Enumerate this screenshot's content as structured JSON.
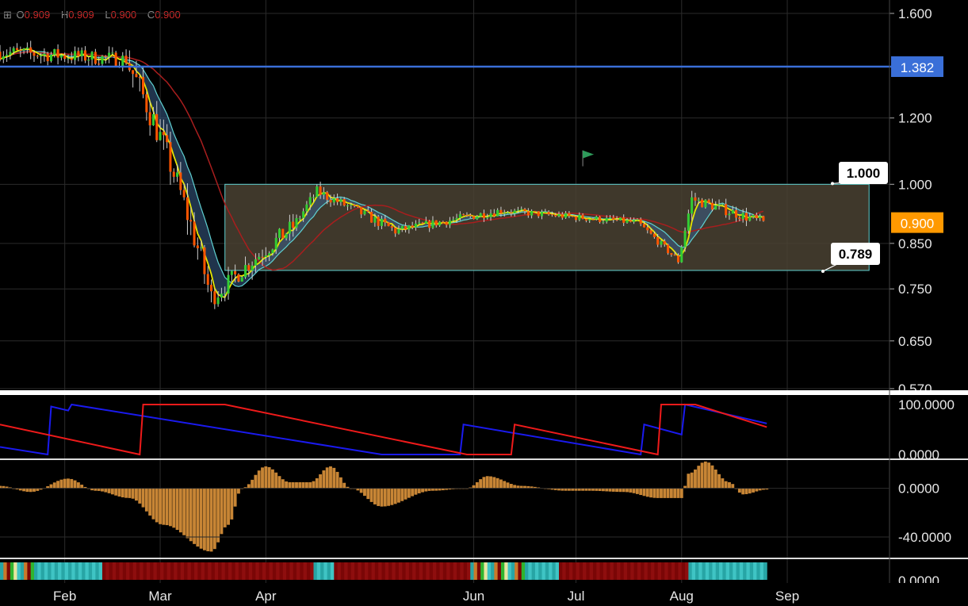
{
  "ohlc": {
    "open_label": "O",
    "open": "0.909",
    "high_label": "H",
    "high": "0.909",
    "low_label": "L",
    "low": "0.900",
    "close_label": "C",
    "close": "0.900"
  },
  "colors": {
    "up": "#33cc33",
    "down": "#ff5500",
    "hline": "#3a6fd8",
    "box_stroke": "#5fd0d0",
    "box_fill": "#4a4233",
    "ma_fast": "#e6e600",
    "ma_slow": "#a81e1e",
    "band_fill": "#3a5f8a",
    "band_line": "#5fd0d0",
    "aroon_up": "#1a1aee",
    "aroon_down": "#ee1a1a",
    "osc": "#c78535"
  },
  "chart_data": [
    {
      "type": "candlestick",
      "title": "",
      "y_axis": {
        "min": 0.57,
        "max": 1.66,
        "scale": "log",
        "ticks": [
          "1.600",
          "1.200",
          "1.000",
          "0.850",
          "0.750",
          "0.650",
          "0.570"
        ]
      },
      "x_axis": {
        "labels": [
          "Feb",
          "Mar",
          "Apr",
          "Jun",
          "Jul",
          "Aug",
          "Sep"
        ],
        "dates": [
          "2018-02-01",
          "2018-03-01",
          "2018-04-01",
          "2018-06-01",
          "2018-07-01",
          "2018-08-01",
          "2018-09-01"
        ],
        "start": "2018-01-13",
        "end": "2018-10-01"
      },
      "horizontal_line": {
        "value": 1.382,
        "label": "1.382"
      },
      "last_price": {
        "value": 0.9,
        "label": "0.900"
      },
      "range_box": {
        "top": 1.0,
        "bottom": 0.789,
        "start": "2018-03-20",
        "end": "2018-09-25",
        "top_label": "1.000",
        "bottom_label": "0.789"
      },
      "flag_marker": {
        "date": "2018-07-03",
        "value": 1.06
      },
      "phases": [
        {
          "start": "2018-01-13",
          "end": "2018-02-20",
          "from": 1.44,
          "to": 1.41,
          "vol": 0.02
        },
        {
          "start": "2018-02-20",
          "end": "2018-03-17",
          "from": 1.41,
          "to": 0.73,
          "vol": 0.04
        },
        {
          "start": "2018-03-17",
          "end": "2018-04-10",
          "from": 0.73,
          "to": 0.89,
          "vol": 0.025
        },
        {
          "start": "2018-04-10",
          "end": "2018-04-17",
          "from": 0.89,
          "to": 0.98,
          "vol": 0.015
        },
        {
          "start": "2018-04-17",
          "end": "2018-05-10",
          "from": 0.98,
          "to": 0.88,
          "vol": 0.015
        },
        {
          "start": "2018-05-10",
          "end": "2018-06-10",
          "from": 0.88,
          "to": 0.93,
          "vol": 0.012
        },
        {
          "start": "2018-06-10",
          "end": "2018-07-20",
          "from": 0.93,
          "to": 0.9,
          "vol": 0.01
        },
        {
          "start": "2018-07-20",
          "end": "2018-08-01",
          "from": 0.9,
          "to": 0.81,
          "vol": 0.01
        },
        {
          "start": "2018-08-01",
          "end": "2018-08-05",
          "from": 0.81,
          "to": 0.96,
          "vol": 0.02
        },
        {
          "start": "2018-08-05",
          "end": "2018-08-26",
          "from": 0.96,
          "to": 0.9,
          "vol": 0.015
        }
      ]
    },
    {
      "type": "line",
      "name": "aroon",
      "y_axis": {
        "min": 0,
        "max": 100,
        "ticks": [
          "100.0000",
          "0.0000"
        ]
      },
      "series": [
        {
          "color": "aroon_up",
          "points": [
            [
              "2018-01-13",
              15
            ],
            [
              "2018-01-27",
              0
            ],
            [
              "2018-01-28",
              96
            ],
            [
              "2018-02-02",
              88
            ],
            [
              "2018-02-03",
              100
            ],
            [
              "2018-05-05",
              0
            ],
            [
              "2018-05-28",
              0
            ],
            [
              "2018-05-29",
              60
            ],
            [
              "2018-07-20",
              0
            ],
            [
              "2018-07-21",
              60
            ],
            [
              "2018-08-01",
              40
            ],
            [
              "2018-08-02",
              100
            ],
            [
              "2018-08-26",
              62
            ]
          ]
        },
        {
          "color": "aroon_down",
          "points": [
            [
              "2018-01-13",
              60
            ],
            [
              "2018-02-23",
              0
            ],
            [
              "2018-02-24",
              100
            ],
            [
              "2018-03-20",
              100
            ],
            [
              "2018-05-30",
              0
            ],
            [
              "2018-06-12",
              0
            ],
            [
              "2018-06-13",
              60
            ],
            [
              "2018-07-25",
              0
            ],
            [
              "2018-07-26",
              100
            ],
            [
              "2018-08-05",
              100
            ],
            [
              "2018-08-26",
              55
            ]
          ]
        }
      ]
    },
    {
      "type": "bar",
      "name": "oscillator",
      "y_axis": {
        "min": -55,
        "max": 18,
        "ticks": [
          "0.0000",
          "-40.0000"
        ]
      },
      "waves": [
        [
          "2018-01-13",
          2
        ],
        [
          "2018-01-22",
          -3
        ],
        [
          "2018-02-02",
          8
        ],
        [
          "2018-02-10",
          -2
        ],
        [
          "2018-02-20",
          -8
        ],
        [
          "2018-03-02",
          -30
        ],
        [
          "2018-03-16",
          -52
        ],
        [
          "2018-03-21",
          -30
        ],
        [
          "2018-03-25",
          0
        ],
        [
          "2018-04-01",
          18
        ],
        [
          "2018-04-08",
          5
        ],
        [
          "2018-04-14",
          5
        ],
        [
          "2018-04-20",
          18
        ],
        [
          "2018-04-26",
          0
        ],
        [
          "2018-05-05",
          -15
        ],
        [
          "2018-05-20",
          -2
        ],
        [
          "2018-05-30",
          0
        ],
        [
          "2018-06-05",
          10
        ],
        [
          "2018-06-15",
          2
        ],
        [
          "2018-06-28",
          -2
        ],
        [
          "2018-07-05",
          -2
        ],
        [
          "2018-07-15",
          -3
        ],
        [
          "2018-07-25",
          -8
        ],
        [
          "2018-08-01",
          -8
        ],
        [
          "2018-08-03",
          12
        ],
        [
          "2018-08-08",
          22
        ],
        [
          "2018-08-15",
          5
        ],
        [
          "2018-08-19",
          -5
        ],
        [
          "2018-08-26",
          -1
        ]
      ]
    },
    {
      "type": "heatmap",
      "name": "signal-strip",
      "y_axis": {
        "ticks": [
          "0.0000"
        ]
      },
      "segments": [
        [
          "2018-01-13",
          "2018-01-23",
          "mixed"
        ],
        [
          "2018-01-23",
          "2018-02-12",
          "teal"
        ],
        [
          "2018-02-12",
          "2018-04-15",
          "dark-red"
        ],
        [
          "2018-04-15",
          "2018-04-21",
          "teal"
        ],
        [
          "2018-04-21",
          "2018-05-31",
          "dark-red"
        ],
        [
          "2018-05-31",
          "2018-06-16",
          "mixed"
        ],
        [
          "2018-06-16",
          "2018-06-26",
          "teal"
        ],
        [
          "2018-06-26",
          "2018-08-03",
          "dark-red"
        ],
        [
          "2018-08-03",
          "2018-08-26",
          "teal"
        ]
      ]
    }
  ]
}
